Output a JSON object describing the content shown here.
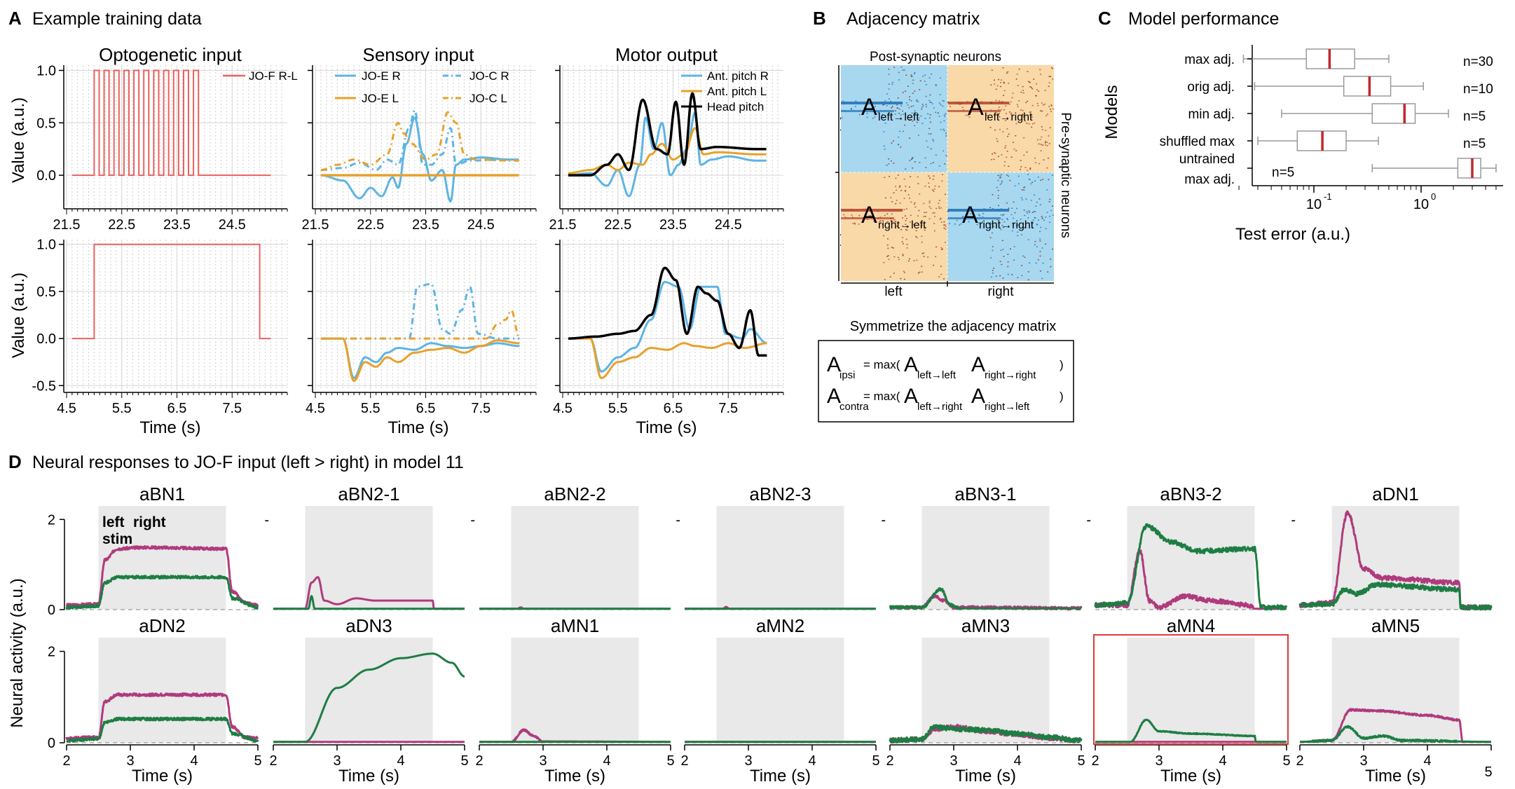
{
  "panels": {
    "A": {
      "letter": "A",
      "title": "Example training data"
    },
    "B": {
      "letter": "B",
      "title": "Adjacency matrix"
    },
    "C": {
      "letter": "C",
      "title": "Model performance"
    },
    "D": {
      "letter": "D",
      "title": "Neural responses to JO-F input (left > right) in model 11"
    }
  },
  "panelA": {
    "col_titles": [
      "Optogenetic input",
      "Sensory input",
      "Motor output"
    ],
    "ylabel": "Value (a.u.)",
    "xlabel": "Time (s)",
    "top_xticks": [
      "21.5",
      "22.5",
      "23.5",
      "24.5"
    ],
    "bottom_xticks": [
      "4.5",
      "5.5",
      "6.5",
      "7.5"
    ],
    "top_yticks": [
      "1.0",
      "0.5",
      "0.0"
    ],
    "bottom_yticks": [
      "1.0",
      "0.5",
      "0.0",
      "-0.5"
    ],
    "legend_opto": [
      "JO-F R-L"
    ],
    "legend_sensory": [
      "JO-E R",
      "JO-E L",
      "JO-C R",
      "JO-C L"
    ],
    "legend_motor": [
      "Ant. pitch R",
      "Ant. pitch L",
      "Head pitch"
    ],
    "colors": {
      "opto": "#e8625e",
      "blue": "#5db4e4",
      "orange": "#e7a12b",
      "black": "#000000"
    }
  },
  "panelB": {
    "top_label": "Post-synaptic neurons",
    "right_label": "Pre-synaptic neurons",
    "row_labels": [
      "left",
      "right"
    ],
    "col_labels": [
      "left",
      "right"
    ],
    "blocks": [
      {
        "main": "A",
        "sub": "left→left"
      },
      {
        "main": "A",
        "sub": "left→right"
      },
      {
        "main": "A",
        "sub": "right→left"
      },
      {
        "main": "A",
        "sub": "right→right"
      }
    ],
    "symm_title": "Symmetrize the adjacency matrix",
    "eq_ipsi": {
      "main": "A",
      "sub": "ipsi",
      "rhs": "= max(",
      "t1": "A",
      "s1": "left→left",
      "t2": "A",
      "s2": "right→right",
      "close": ")"
    },
    "eq_contra": {
      "main": "A",
      "sub": "contra",
      "rhs": "= max(",
      "t1": "A",
      "s1": "left→right",
      "t2": "A",
      "s2": "right→left",
      "close": ")"
    },
    "colors": {
      "blue": "#a7d8f0",
      "orange": "#f9d9a8",
      "ipsi": "#2ea7e0",
      "contra": "#f0a225"
    }
  },
  "panelC": {
    "ylabel": "Models",
    "xlabel": "Test error (a.u.)",
    "xticks": [
      "10",
      "-1",
      "10",
      "0"
    ],
    "models": [
      {
        "label": "max adj.",
        "n": "n=30"
      },
      {
        "label": "orig adj.",
        "n": "n=10"
      },
      {
        "label": "min adj.",
        "n": "n=5"
      },
      {
        "label": "shuffled max",
        "n": "n=5"
      },
      {
        "label": "untrained",
        "label2": "max adj.",
        "n": "n=5"
      }
    ]
  },
  "panelD": {
    "ylabel": "Neural activity (a.u.)",
    "xlabel": "Time (s)",
    "xticks": [
      "2",
      "3",
      "4",
      "5"
    ],
    "yticks_top": [
      "2",
      "0"
    ],
    "legend": {
      "left": "left",
      "right": "right",
      "stim": "stim"
    },
    "row1": [
      "aBN1",
      "aBN2-1",
      "aBN2-2",
      "aBN2-3",
      "aBN3-1",
      "aBN3-2",
      "aDN1"
    ],
    "row2": [
      "aDN2",
      "aDN3",
      "aMN1",
      "aMN2",
      "aMN3",
      "aMN4",
      "aMN5"
    ],
    "extra_tick": "5",
    "dash_label": "-",
    "colors": {
      "left": "#b03a7e",
      "right": "#1e7d43",
      "stim": "#e8e9e8",
      "highlight": "#e03a3a"
    }
  }
}
